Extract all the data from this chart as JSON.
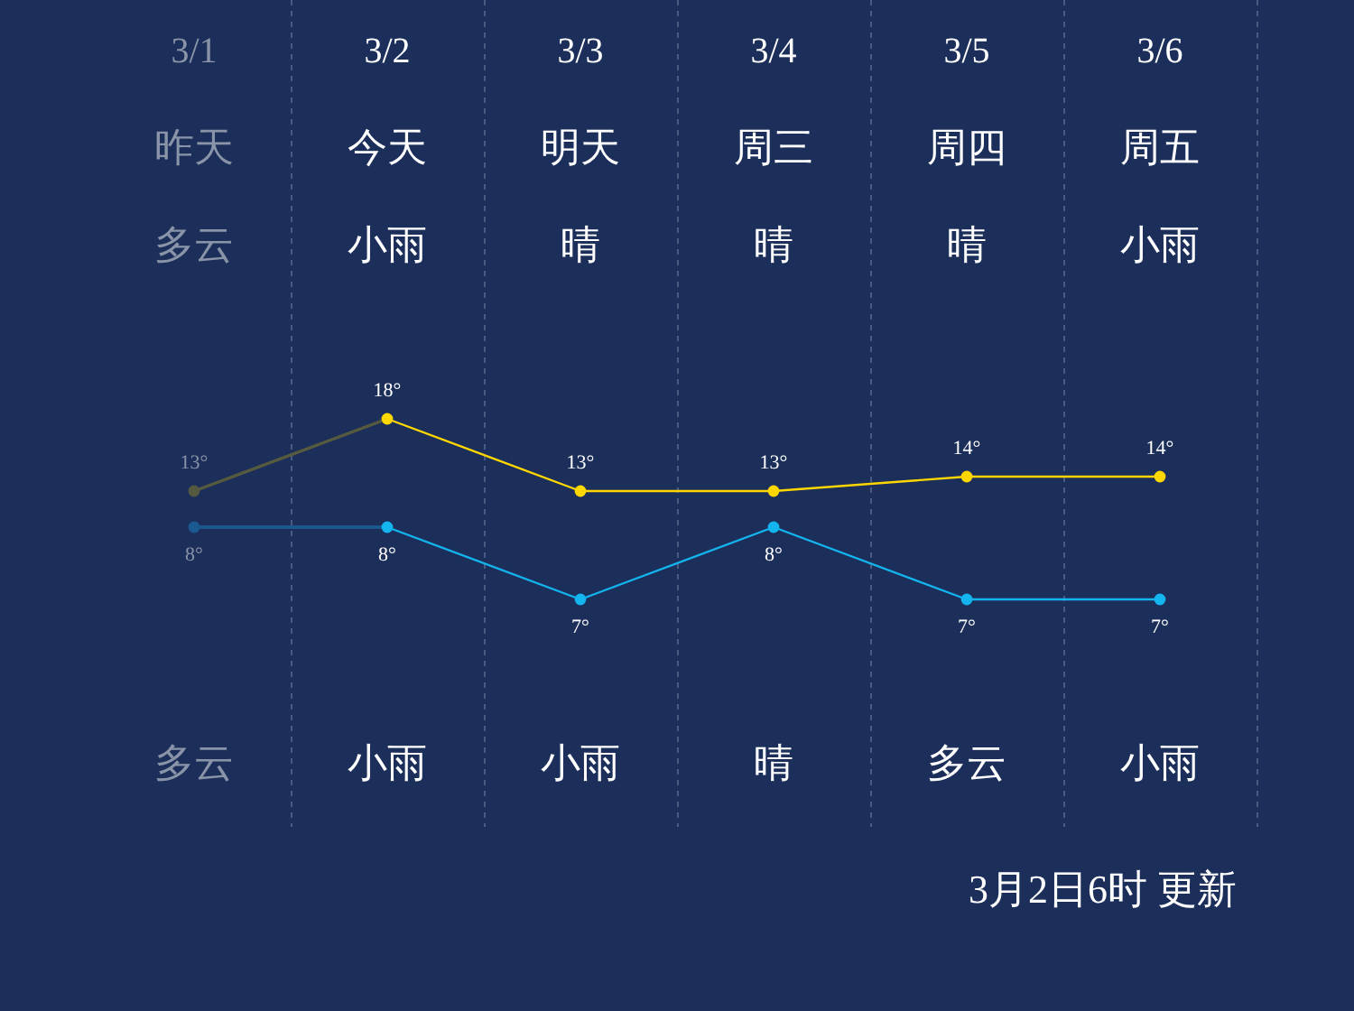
{
  "chart_data": [
    {
      "type": "line",
      "categories": [
        "3/1",
        "3/2",
        "3/3",
        "3/4",
        "3/5",
        "3/6"
      ],
      "series": [
        {
          "color": "#ffd700",
          "colors": [
            "#55593f",
            "#ffd700",
            "#ffd700",
            "#ffd700",
            "#ffd700",
            "#ffd700"
          ],
          "values": [
            13,
            18,
            13,
            13,
            14,
            14
          ],
          "value_labels": [
            "13°",
            "18°",
            "13°",
            "13°",
            "14°",
            "14°"
          ]
        }
      ],
      "grid": "x",
      "marker": "circle",
      "annotations": [
        "昨天",
        "今天",
        "明天",
        "周三",
        "周四",
        "周五",
        "多云",
        "小雨",
        "晴",
        "晴",
        "晴",
        "小雨",
        "多云",
        "小雨",
        "小雨",
        "晴",
        "多云",
        "小雨",
        "3月2日6时 更新"
      ]
    },
    {
      "type": "line",
      "categories": [
        null,
        null,
        null,
        null,
        null,
        null
      ],
      "series": [
        {
          "color": "#14b4ef",
          "colors": [
            "#1a5a90",
            "#14b4ef",
            "#14b4ef",
            "#14b4ef",
            "#14b4ef",
            "#14b4ef"
          ],
          "values": [
            8,
            8,
            7,
            8,
            7,
            7
          ],
          "value_labels": [
            "8°",
            "8°",
            "7°",
            "8°",
            "7°",
            "7°"
          ]
        }
      ],
      "marker": "circle"
    }
  ]
}
